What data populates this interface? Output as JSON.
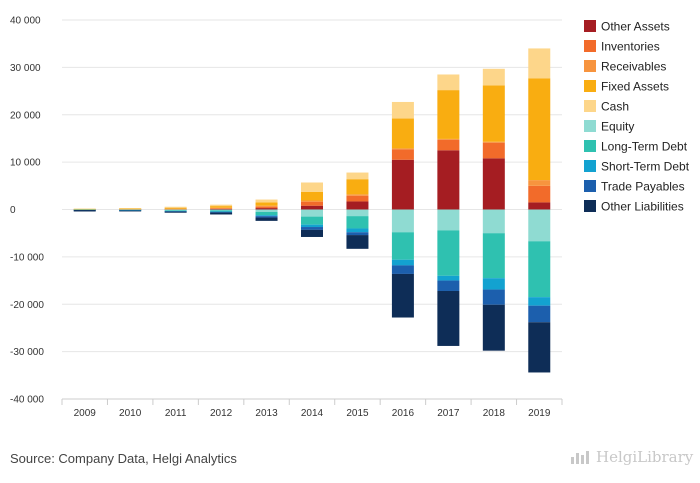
{
  "source": "Source: Company Data, Helgi Analytics",
  "brand": {
    "name": "HelgiLibrary",
    "icon": "bar-chart-logo-icon"
  },
  "chart_data": {
    "type": "bar",
    "stacked": true,
    "categories": [
      "2009",
      "2010",
      "2011",
      "2012",
      "2013",
      "2014",
      "2015",
      "2016",
      "2017",
      "2018",
      "2019"
    ],
    "ylim": [
      -40000,
      40000
    ],
    "yticks": [
      -40000,
      -30000,
      -20000,
      -10000,
      0,
      10000,
      20000,
      30000,
      40000
    ],
    "ytick_labels": [
      "-40 000",
      "-30 000",
      "-20 000",
      "-10 000",
      "0",
      "10 000",
      "20 000",
      "30 000",
      "40 000"
    ],
    "grid": "horizontal",
    "legend_position": "right",
    "series": [
      {
        "name": "Other Assets",
        "color": "#a51d22",
        "values": [
          20,
          40,
          60,
          120,
          300,
          800,
          1700,
          10500,
          12500,
          10800,
          1500
        ]
      },
      {
        "name": "Inventories",
        "color": "#f26b2a",
        "values": [
          30,
          50,
          70,
          150,
          300,
          800,
          1200,
          2200,
          2200,
          3300,
          3500
        ]
      },
      {
        "name": "Receivables",
        "color": "#f7943e",
        "values": [
          20,
          30,
          50,
          100,
          200,
          300,
          300,
          200,
          200,
          200,
          1200
        ]
      },
      {
        "name": "Fixed Assets",
        "color": "#f9ad11",
        "values": [
          60,
          100,
          200,
          350,
          700,
          1800,
          3200,
          6300,
          10300,
          11900,
          21500
        ]
      },
      {
        "name": "Cash",
        "color": "#fdd68a",
        "values": [
          70,
          80,
          200,
          300,
          600,
          2000,
          1400,
          3500,
          3300,
          3500,
          6300
        ]
      },
      {
        "name": "Equity",
        "color": "#8fdbd2",
        "values": [
          -50,
          -80,
          -150,
          -200,
          -500,
          -1500,
          -1400,
          -4800,
          -4400,
          -5000,
          -6700
        ]
      },
      {
        "name": "Long-Term Debt",
        "color": "#2fc1b0",
        "values": [
          -30,
          -60,
          -150,
          -200,
          -700,
          -1700,
          -2600,
          -5800,
          -9600,
          -9500,
          -11800
        ]
      },
      {
        "name": "Short-Term Debt",
        "color": "#13a2d0",
        "values": [
          -20,
          -30,
          -50,
          -100,
          -200,
          -500,
          -800,
          -1200,
          -1000,
          -2400,
          -1800
        ]
      },
      {
        "name": "Trade Payables",
        "color": "#1c5fad",
        "values": [
          -40,
          -60,
          -100,
          -150,
          -300,
          -600,
          -600,
          -1800,
          -2200,
          -3200,
          -3500
        ]
      },
      {
        "name": "Other Liabilities",
        "color": "#0e2d57",
        "values": [
          -280,
          -180,
          -230,
          -400,
          -700,
          -1500,
          -2900,
          -9200,
          -11600,
          -9700,
          -10600
        ]
      }
    ]
  }
}
